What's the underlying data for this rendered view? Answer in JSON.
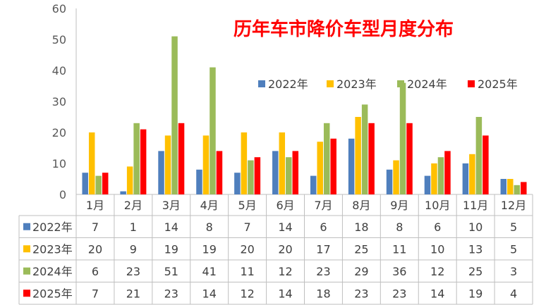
{
  "chart_data": {
    "type": "bar",
    "title": "历年车市降价车型月度分布",
    "categories": [
      "1月",
      "2月",
      "3月",
      "4月",
      "5月",
      "6月",
      "7月",
      "8月",
      "9月",
      "10月",
      "11月",
      "12月"
    ],
    "series": [
      {
        "name": "2022年",
        "color": "#4f7fbd",
        "values": [
          7,
          1,
          14,
          8,
          7,
          14,
          6,
          18,
          8,
          6,
          10,
          5
        ]
      },
      {
        "name": "2023年",
        "color": "#ffc000",
        "values": [
          20,
          9,
          19,
          19,
          20,
          20,
          17,
          25,
          11,
          10,
          13,
          5
        ]
      },
      {
        "name": "2024年",
        "color": "#9bbb59",
        "values": [
          6,
          23,
          51,
          41,
          11,
          12,
          23,
          29,
          36,
          12,
          25,
          3
        ]
      },
      {
        "name": "2025年",
        "color": "#ff0000",
        "values": [
          7,
          21,
          23,
          14,
          12,
          14,
          18,
          23,
          23,
          14,
          19,
          4
        ]
      }
    ],
    "ylim": [
      0,
      60
    ],
    "yticks": [
      0,
      10,
      20,
      30,
      40,
      50,
      60
    ],
    "xlabel": "",
    "ylabel": "",
    "grid": false,
    "legend_position": "top-right",
    "data_table": true,
    "title_color": "#ff0000"
  }
}
